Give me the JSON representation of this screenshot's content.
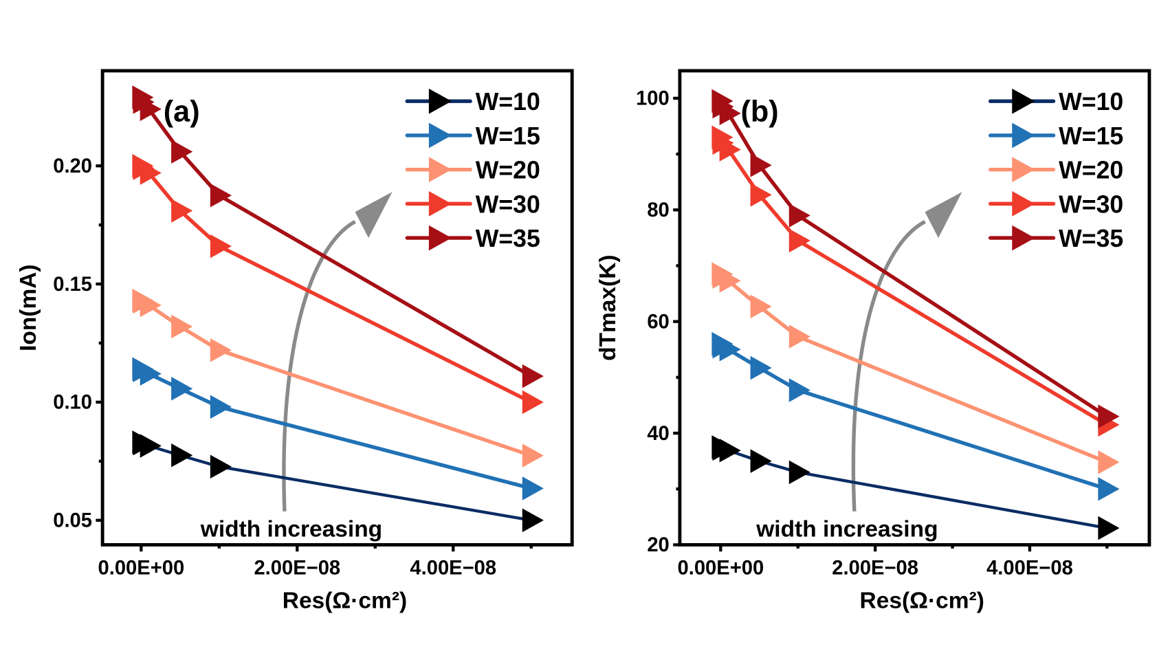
{
  "chart_data": [
    {
      "type": "line",
      "panel_label": "(a)",
      "title": "",
      "xlabel": "Res(Ω·cm²)",
      "ylabel": "Ion(mA)",
      "xlim": [
        -5e-09,
        5.5e-08
      ],
      "ylim": [
        0.03,
        0.245
      ],
      "xticks": [
        0,
        2e-08,
        4e-08
      ],
      "xtick_labels": [
        "0.00E+00",
        "2.00E−08",
        "4.00E−08"
      ],
      "yticks": [
        0.05,
        0.1,
        0.15,
        0.2
      ],
      "ytick_labels": [
        "0.05",
        "0.10",
        "0.15",
        "0.20"
      ],
      "grid": false,
      "legend_position": "top-right",
      "annotation": "width increasing",
      "x": [
        0,
        1e-10,
        1e-09,
        5e-09,
        1e-08,
        5e-08
      ],
      "series": [
        {
          "name": "W=10",
          "line_color": "#0b2c64",
          "marker_color": "#000000",
          "values": [
            0.083,
            0.0825,
            0.0815,
            0.0775,
            0.0727,
            0.05
          ]
        },
        {
          "name": "W=15",
          "line_color": "#2171b5",
          "marker_color": "#2171b5",
          "values": [
            0.114,
            0.1135,
            0.112,
            0.1057,
            0.098,
            0.0635
          ]
        },
        {
          "name": "W=20",
          "line_color": "#fc9272",
          "marker_color": "#fc9272",
          "values": [
            0.143,
            0.1425,
            0.141,
            0.132,
            0.122,
            0.0774
          ]
        },
        {
          "name": "W=30",
          "line_color": "#ef3b2c",
          "marker_color": "#ef3b2c",
          "values": [
            0.2,
            0.199,
            0.197,
            0.181,
            0.166,
            0.1
          ]
        },
        {
          "name": "W=35",
          "line_color": "#a50f15",
          "marker_color": "#a50f15",
          "values": [
            0.229,
            0.227,
            0.224,
            0.206,
            0.1875,
            0.111
          ]
        }
      ]
    },
    {
      "type": "line",
      "panel_label": "(b)",
      "title": "",
      "xlabel": "Res(Ω·cm²)",
      "ylabel": "dTmax(K)",
      "xlim": [
        -5e-09,
        5.5e-08
      ],
      "ylim": [
        20,
        105
      ],
      "xticks": [
        0,
        2e-08,
        4e-08
      ],
      "xtick_labels": [
        "0.00E+00",
        "2.00E−08",
        "4.00E−08"
      ],
      "yticks": [
        20,
        40,
        60,
        80,
        100
      ],
      "ytick_labels": [
        "20",
        "40",
        "60",
        "80",
        "100"
      ],
      "grid": false,
      "legend_position": "top-right",
      "annotation": "width increasing",
      "x": [
        0,
        1e-10,
        1e-09,
        5e-09,
        1e-08,
        5e-08
      ],
      "series": [
        {
          "name": "W=10",
          "line_color": "#0b2c64",
          "marker_color": "#000000",
          "values": [
            37.5,
            37.2,
            36.9,
            35.0,
            33.0,
            23.0
          ]
        },
        {
          "name": "W=15",
          "line_color": "#2171b5",
          "marker_color": "#2171b5",
          "values": [
            56.0,
            55.5,
            55.0,
            51.7,
            47.7,
            30.0
          ]
        },
        {
          "name": "W=20",
          "line_color": "#fc9272",
          "marker_color": "#fc9272",
          "values": [
            68.5,
            68.0,
            67.3,
            62.7,
            57.3,
            34.8
          ]
        },
        {
          "name": "W=30",
          "line_color": "#ef3b2c",
          "marker_color": "#ef3b2c",
          "values": [
            93.0,
            92.0,
            90.8,
            82.7,
            74.5,
            41.5
          ]
        },
        {
          "name": "W=35",
          "line_color": "#a50f15",
          "marker_color": "#a50f15",
          "values": [
            99.5,
            98.5,
            97.3,
            88.0,
            79.0,
            43.0
          ]
        }
      ]
    }
  ]
}
